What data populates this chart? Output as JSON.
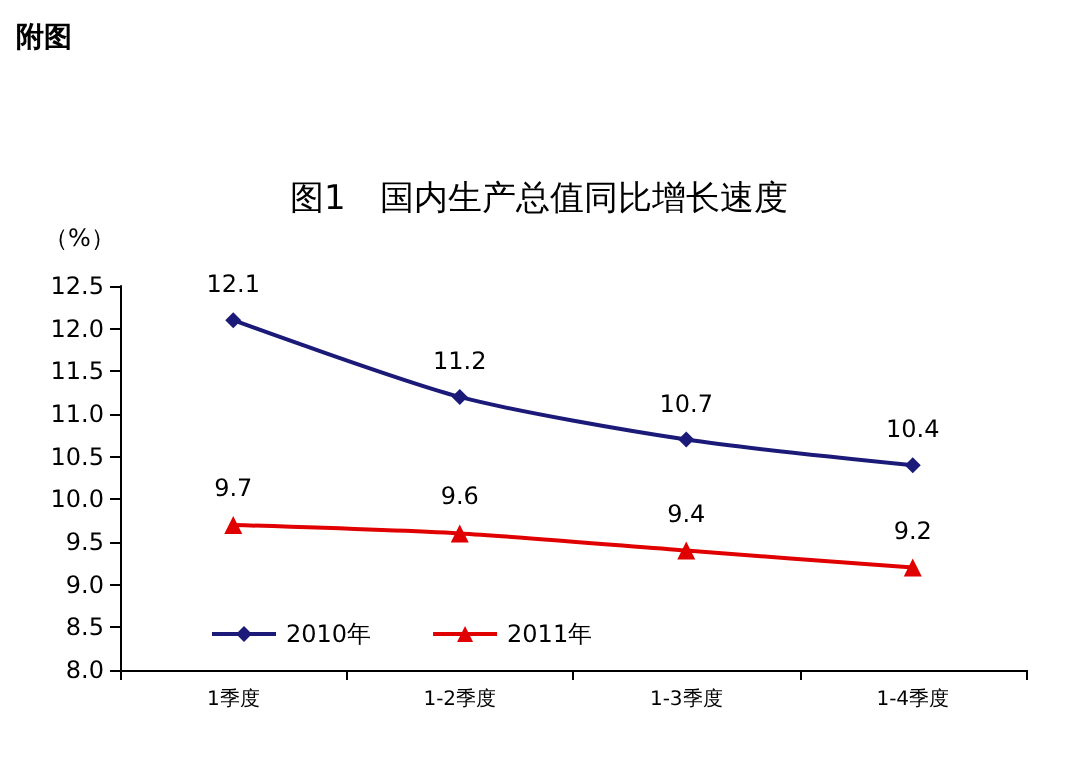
{
  "chart_data": {
    "type": "line",
    "title": "图1　国内生产总值同比增长速度",
    "ylabel": "（%）",
    "annotations": [
      "附图"
    ],
    "categories": [
      "1季度",
      "1-2季度",
      "1-3季度",
      "1-4季度"
    ],
    "series": [
      {
        "name": "2010年",
        "color": "#1c1a78",
        "marker": "diamond",
        "values": [
          12.1,
          11.2,
          10.7,
          10.4
        ]
      },
      {
        "name": "2011年",
        "color": "#e00000",
        "marker": "triangle",
        "values": [
          9.7,
          9.6,
          9.4,
          9.2
        ]
      }
    ],
    "ylim": [
      8.0,
      12.5
    ],
    "yticks": [
      {
        "value": 8,
        "label": "8.0"
      },
      {
        "value": 8.5,
        "label": "8.5"
      },
      {
        "value": 9,
        "label": "9.0"
      },
      {
        "value": 9.5,
        "label": "9.5"
      },
      {
        "value": 10,
        "label": "10.0"
      },
      {
        "value": 10.5,
        "label": "10.5"
      },
      {
        "value": 11,
        "label": "11.0"
      },
      {
        "value": 11.5,
        "label": "11.5"
      },
      {
        "value": 12,
        "label": "12.0"
      },
      {
        "value": 12.5,
        "label": "12.5"
      }
    ],
    "data_labels": true,
    "grid": false,
    "legend": "bottom left",
    "line_style": "solid"
  }
}
